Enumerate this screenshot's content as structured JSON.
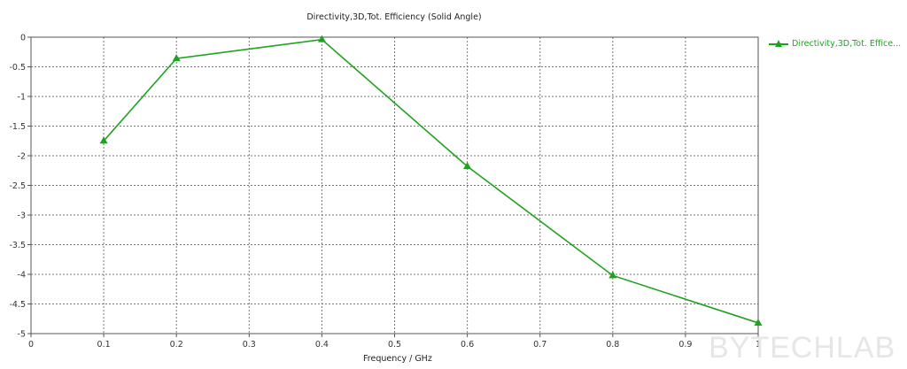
{
  "chart": {
    "title": "Directivity,3D,Tot. Efficiency (Solid Angle)",
    "xlabel": "Frequency / GHz",
    "legend_label": "Directivity,3D,Tot. Effice...",
    "watermark": "BYTECHLAB",
    "line_color": "#1fa31f"
  },
  "chart_data": {
    "type": "line",
    "title": "Directivity,3D,Tot. Efficiency (Solid Angle)",
    "xlabel": "Frequency / GHz",
    "ylabel": "",
    "xlim": [
      0,
      1
    ],
    "ylim": [
      -5,
      0
    ],
    "x_ticks": [
      "0",
      "0.1",
      "0.2",
      "0.3",
      "0.4",
      "0.5",
      "0.6",
      "0.7",
      "0.8",
      "0.9",
      "1"
    ],
    "y_ticks": [
      "0",
      "-0.5",
      "-1",
      "-1.5",
      "-2",
      "-2.5",
      "-3",
      "-3.5",
      "-4",
      "-4.5",
      "-5"
    ],
    "grid": true,
    "legend_position": "right",
    "series": [
      {
        "name": "Directivity,3D,Tot. Effice...",
        "marker": "triangle",
        "color": "#1fa31f",
        "x": [
          0.1,
          0.2,
          0.4,
          0.6,
          0.8,
          1.0
        ],
        "y": [
          -1.75,
          -0.36,
          -0.04,
          -2.18,
          -4.02,
          -4.82
        ]
      }
    ]
  }
}
